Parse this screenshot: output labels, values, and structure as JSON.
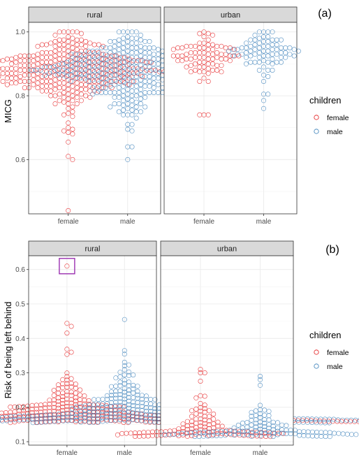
{
  "colors": {
    "female": "#e41a1c",
    "male": "#377eb8",
    "highlight": "#9b30b0"
  },
  "chart_data": [
    {
      "type": "scatter",
      "subtype": "beeswarm",
      "tag": "(a)",
      "ylabel": "MICG",
      "ylim": [
        0.43,
        1.03
      ],
      "yticks": [
        0.6,
        0.8,
        1.0
      ],
      "ytick_labels": [
        "0.6",
        "0.8",
        "1.0"
      ],
      "facets": [
        "rural",
        "urban"
      ],
      "categories": [
        "female",
        "male"
      ],
      "legend": {
        "title": "children",
        "entries": [
          "female",
          "male"
        ],
        "position": "right"
      },
      "grid": true,
      "series": [
        {
          "facet": "rural",
          "name": "female",
          "median": 0.89,
          "min": 0.44,
          "max": 1.0,
          "n": 330
        },
        {
          "facet": "rural",
          "name": "male",
          "median": 0.89,
          "min": 0.6,
          "max": 1.0,
          "n": 330
        },
        {
          "facet": "urban",
          "name": "female",
          "median": 0.93,
          "min": 0.74,
          "max": 1.0,
          "n": 80
        },
        {
          "facet": "urban",
          "name": "male",
          "median": 0.94,
          "min": 0.76,
          "max": 1.0,
          "n": 80
        }
      ]
    },
    {
      "type": "scatter",
      "subtype": "beeswarm",
      "tag": "(b)",
      "ylabel": "Risk of being left behind",
      "ylim": [
        0.09,
        0.64
      ],
      "yticks": [
        0.1,
        0.2,
        0.3,
        0.4,
        0.5,
        0.6
      ],
      "ytick_labels": [
        "0.1",
        "0.2",
        "0.3",
        "0.4",
        "0.5",
        "0.6"
      ],
      "facets": [
        "rural",
        "urban"
      ],
      "categories": [
        "female",
        "male"
      ],
      "legend": {
        "title": "children",
        "entries": [
          "female",
          "male"
        ],
        "position": "right"
      },
      "grid": true,
      "highlight": {
        "facet": "rural",
        "category": "female",
        "value": 0.61
      },
      "series": [
        {
          "facet": "rural",
          "name": "female",
          "median": 0.17,
          "min": 0.155,
          "max": 0.61,
          "n": 400
        },
        {
          "facet": "rural",
          "name": "male",
          "median": 0.18,
          "min": 0.155,
          "max": 0.455,
          "n": 400
        },
        {
          "facet": "urban",
          "name": "female",
          "median": 0.135,
          "min": 0.115,
          "max": 0.31,
          "n": 120
        },
        {
          "facet": "urban",
          "name": "male",
          "median": 0.13,
          "min": 0.115,
          "max": 0.29,
          "n": 120
        }
      ]
    }
  ]
}
